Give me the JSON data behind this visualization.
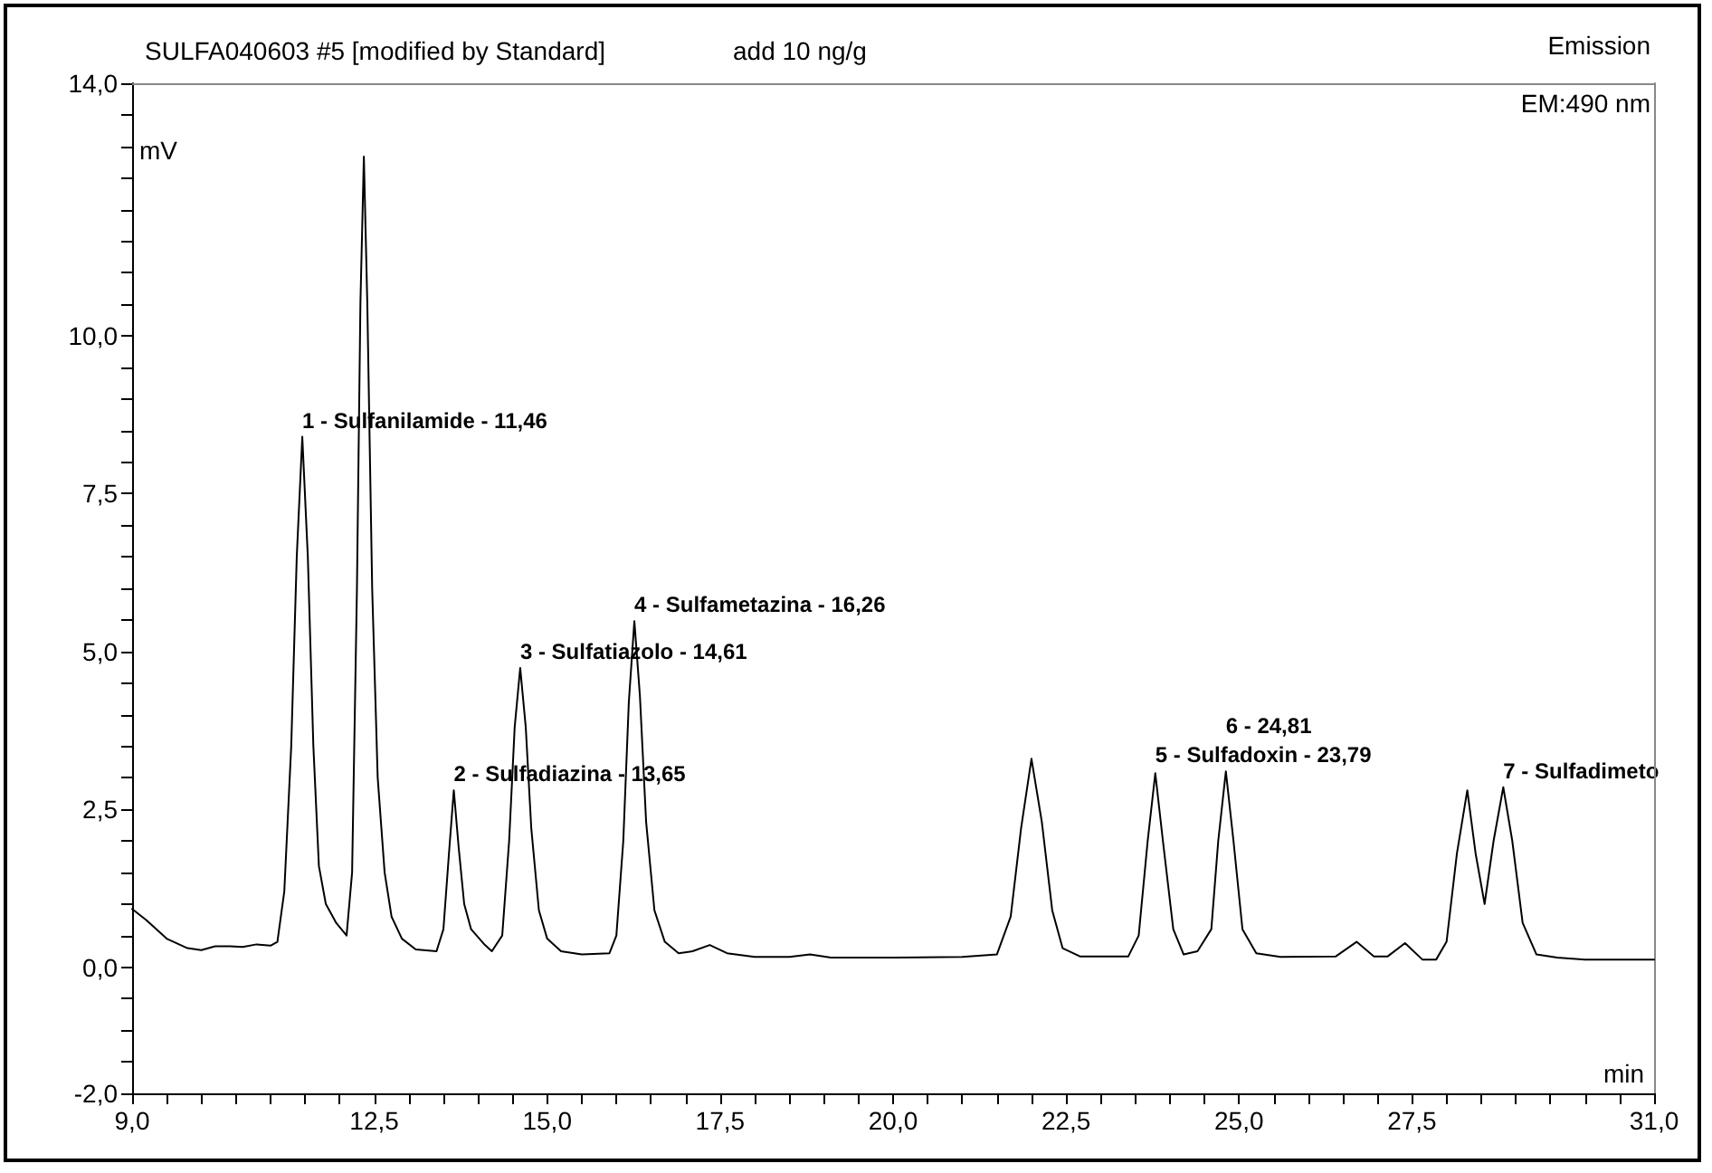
{
  "chart_data": {
    "type": "line",
    "title": "SULFA040603 #5 [modified by Standard]",
    "subtitle": "add 10 ng/g",
    "xlabel": "min",
    "ylabel": "mV",
    "annotations": [
      "Emission",
      "EM:490 nm",
      {
        "text": "1 - Sulfanilamide - 11,46",
        "x": 11.46,
        "y": 8.4
      },
      {
        "text": "2 - Sulfadiazina - 13,65",
        "x": 13.65,
        "y": 2.8
      },
      {
        "text": "3 - Sulfatiazolo - 14,61",
        "x": 14.61,
        "y": 4.74
      },
      {
        "text": "4 - Sulfametazina - 16,26",
        "x": 16.26,
        "y": 5.48
      },
      {
        "text": "5 - Sulfadoxin - 23,79",
        "x": 23.79,
        "y": 3.07
      },
      {
        "text": "6 - 24,81",
        "x": 24.81,
        "y": 3.1
      },
      {
        "text": "7 - Sulfadimeto",
        "x": 28.82,
        "y": 2.85
      }
    ],
    "x": [
      9.0,
      9.2,
      9.5,
      9.8,
      10.0,
      10.2,
      10.4,
      10.6,
      10.8,
      11.0,
      11.1,
      11.2,
      11.3,
      11.38,
      11.46,
      11.54,
      11.62,
      11.7,
      11.8,
      11.95,
      12.1,
      12.18,
      12.25,
      12.3,
      12.35,
      12.4,
      12.47,
      12.55,
      12.65,
      12.75,
      12.9,
      13.1,
      13.4,
      13.5,
      13.58,
      13.65,
      13.72,
      13.8,
      13.9,
      14.1,
      14.2,
      14.35,
      14.45,
      14.53,
      14.61,
      14.69,
      14.77,
      14.88,
      15.0,
      15.2,
      15.5,
      15.9,
      16.0,
      16.1,
      16.18,
      16.26,
      16.34,
      16.43,
      16.55,
      16.7,
      16.9,
      17.1,
      17.35,
      17.6,
      18.0,
      18.5,
      18.8,
      19.1,
      20.0,
      21.0,
      21.5,
      21.7,
      21.85,
      22.0,
      22.15,
      22.3,
      22.45,
      22.7,
      23.4,
      23.55,
      23.68,
      23.79,
      23.9,
      24.05,
      24.2,
      24.4,
      24.6,
      24.7,
      24.81,
      24.92,
      25.05,
      25.25,
      25.6,
      26.4,
      26.7,
      26.95,
      27.15,
      27.4,
      27.65,
      27.85,
      28.0,
      28.15,
      28.3,
      28.42,
      28.55,
      28.68,
      28.82,
      28.95,
      29.1,
      29.3,
      29.6,
      30.0,
      31.0
    ],
    "series": [
      {
        "color": "#000000",
        "values": [
          0.92,
          0.75,
          0.45,
          0.3,
          0.27,
          0.33,
          0.33,
          0.32,
          0.36,
          0.34,
          0.4,
          1.2,
          3.5,
          6.5,
          8.4,
          6.5,
          3.5,
          1.6,
          1.0,
          0.7,
          0.5,
          1.5,
          6,
          10.5,
          12.84,
          10.5,
          6,
          3,
          1.5,
          0.8,
          0.45,
          0.28,
          0.25,
          0.6,
          1.8,
          2.8,
          1.9,
          1.0,
          0.6,
          0.35,
          0.25,
          0.5,
          2.0,
          3.8,
          4.74,
          3.8,
          2.2,
          0.9,
          0.45,
          0.25,
          0.2,
          0.22,
          0.5,
          2.0,
          4.2,
          5.48,
          4.3,
          2.3,
          0.9,
          0.4,
          0.22,
          0.25,
          0.35,
          0.22,
          0.16,
          0.16,
          0.2,
          0.15,
          0.15,
          0.16,
          0.2,
          0.8,
          2.2,
          3.3,
          2.3,
          0.9,
          0.3,
          0.17,
          0.17,
          0.5,
          2.0,
          3.07,
          2.0,
          0.6,
          0.2,
          0.25,
          0.6,
          2.0,
          3.1,
          2.0,
          0.6,
          0.22,
          0.16,
          0.17,
          0.4,
          0.17,
          0.17,
          0.38,
          0.12,
          0.12,
          0.4,
          1.8,
          2.8,
          1.8,
          1.0,
          2.0,
          2.85,
          2.0,
          0.7,
          0.2,
          0.15,
          0.12,
          0.12
        ]
      }
    ],
    "xlim": [
      9,
      31
    ],
    "xticks": [
      {
        "value": 9,
        "label": "9,0"
      },
      {
        "value": 9.5,
        "label": null
      },
      {
        "value": 10,
        "label": null
      },
      {
        "value": 10.5,
        "label": null
      },
      {
        "value": 11,
        "label": null
      },
      {
        "value": 11.5,
        "label": null
      },
      {
        "value": 12,
        "label": null
      },
      {
        "value": 12.5,
        "label": "12,5"
      },
      {
        "value": 13,
        "label": null
      },
      {
        "value": 13.5,
        "label": null
      },
      {
        "value": 14,
        "label": null
      },
      {
        "value": 14.5,
        "label": null
      },
      {
        "value": 15,
        "label": "15,0"
      },
      {
        "value": 15.5,
        "label": null
      },
      {
        "value": 16,
        "label": null
      },
      {
        "value": 16.5,
        "label": null
      },
      {
        "value": 17,
        "label": null
      },
      {
        "value": 17.5,
        "label": "17,5"
      },
      {
        "value": 18,
        "label": null
      },
      {
        "value": 18.5,
        "label": null
      },
      {
        "value": 19,
        "label": null
      },
      {
        "value": 19.5,
        "label": null
      },
      {
        "value": 20,
        "label": "20,0"
      },
      {
        "value": 20.5,
        "label": null
      },
      {
        "value": 21,
        "label": null
      },
      {
        "value": 21.5,
        "label": null
      },
      {
        "value": 22,
        "label": null
      },
      {
        "value": 22.5,
        "label": "22,5"
      },
      {
        "value": 23,
        "label": null
      },
      {
        "value": 23.5,
        "label": null
      },
      {
        "value": 24,
        "label": null
      },
      {
        "value": 24.5,
        "label": null
      },
      {
        "value": 25,
        "label": "25,0"
      },
      {
        "value": 25.5,
        "label": null
      },
      {
        "value": 26,
        "label": null
      },
      {
        "value": 26.5,
        "label": null
      },
      {
        "value": 27,
        "label": null
      },
      {
        "value": 27.5,
        "label": "27,5"
      },
      {
        "value": 28,
        "label": null
      },
      {
        "value": 28.5,
        "label": null
      },
      {
        "value": 29,
        "label": null
      },
      {
        "value": 29.5,
        "label": null
      },
      {
        "value": 30,
        "label": null
      },
      {
        "value": 30.5,
        "label": null
      },
      {
        "value": 31,
        "label": "31,0"
      }
    ],
    "ylim": [
      -2,
      14
    ],
    "yticks": [
      {
        "value": -2,
        "label": "-2,0"
      },
      {
        "value": -1.5,
        "label": null
      },
      {
        "value": -1,
        "label": null
      },
      {
        "value": -0.5,
        "label": null
      },
      {
        "value": 0,
        "label": "0,0"
      },
      {
        "value": 0.5,
        "label": null
      },
      {
        "value": 1,
        "label": null
      },
      {
        "value": 1.5,
        "label": null
      },
      {
        "value": 2,
        "label": null
      },
      {
        "value": 2.5,
        "label": "2,5"
      },
      {
        "value": 3,
        "label": null
      },
      {
        "value": 3.5,
        "label": null
      },
      {
        "value": 4,
        "label": null
      },
      {
        "value": 4.5,
        "label": null
      },
      {
        "value": 5,
        "label": "5,0"
      },
      {
        "value": 5.5,
        "label": null
      },
      {
        "value": 6,
        "label": null
      },
      {
        "value": 6.5,
        "label": null
      },
      {
        "value": 7,
        "label": null
      },
      {
        "value": 7.5,
        "label": "7,5"
      },
      {
        "value": 8,
        "label": null
      },
      {
        "value": 8.5,
        "label": null
      },
      {
        "value": 9,
        "label": null
      },
      {
        "value": 9.5,
        "label": null
      },
      {
        "value": 10,
        "label": "10,0"
      },
      {
        "value": 10.5,
        "label": null
      },
      {
        "value": 11,
        "label": null
      },
      {
        "value": 11.5,
        "label": null
      },
      {
        "value": 12,
        "label": null
      },
      {
        "value": 12.5,
        "label": null
      },
      {
        "value": 13,
        "label": null
      },
      {
        "value": 13.5,
        "label": null
      },
      {
        "value": 14,
        "label": "14,0"
      }
    ],
    "grid": false,
    "marker": "none",
    "line_style": "solid"
  }
}
